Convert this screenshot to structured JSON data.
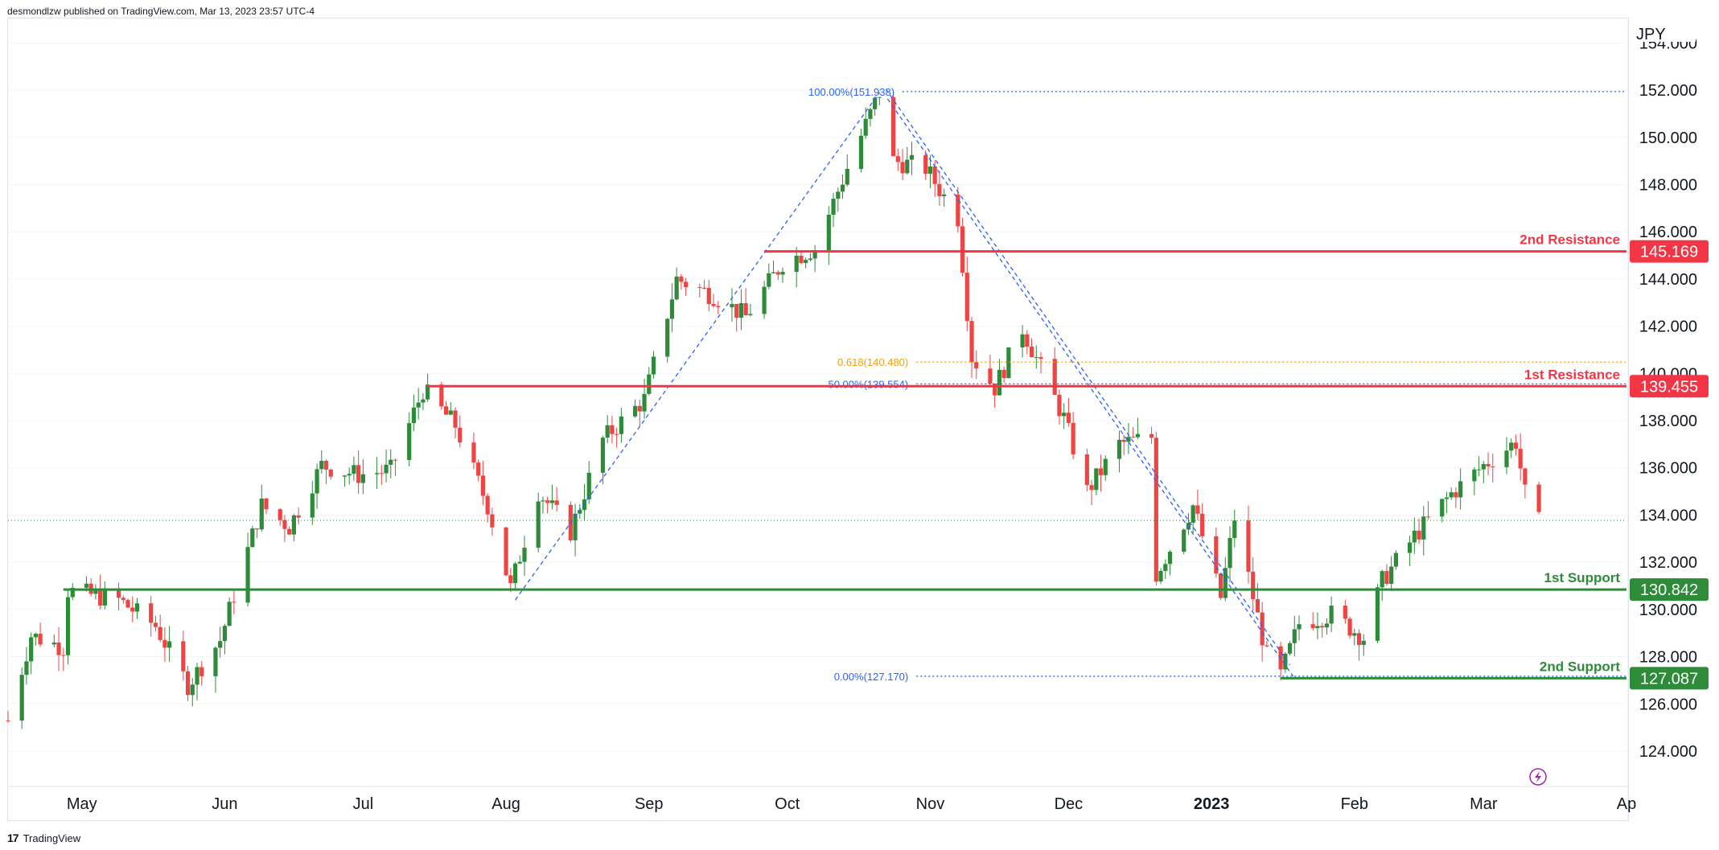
{
  "header": {
    "published": "desmondlzw published on TradingView.com, Mar 13, 2023 23:57 UTC-4"
  },
  "footer": {
    "brand": "TradingView",
    "logo_icon": "tradingview-logo-icon"
  },
  "colors": {
    "up": "#2e8b3a",
    "down": "#ef4444",
    "resistance": "#f23645",
    "support": "#2e8b3a",
    "fib": "#2962ff",
    "fib618": "#f59e0b",
    "grid": "#f0f3fa",
    "text": "#131722"
  },
  "chart_data": {
    "type": "candlestick",
    "symbol_currency": "JPY",
    "y_axis": {
      "range": [
        122.5,
        155
      ],
      "ticks": [
        "154.000",
        "152.000",
        "150.000",
        "148.000",
        "146.000",
        "144.000",
        "142.000",
        "140.000",
        "138.000",
        "136.000",
        "134.000",
        "132.000",
        "130.000",
        "128.000",
        "126.000",
        "124.000"
      ]
    },
    "x_axis": {
      "range": [
        "2022-04-15",
        "2023-04-01"
      ],
      "ticks": [
        {
          "label": "May",
          "date": "2022-05-01",
          "bold": false
        },
        {
          "label": "Jun",
          "date": "2022-06-01",
          "bold": false
        },
        {
          "label": "Jul",
          "date": "2022-07-01",
          "bold": false
        },
        {
          "label": "Aug",
          "date": "2022-08-01",
          "bold": false
        },
        {
          "label": "Sep",
          "date": "2022-09-01",
          "bold": false
        },
        {
          "label": "Oct",
          "date": "2022-10-01",
          "bold": false
        },
        {
          "label": "Nov",
          "date": "2022-11-01",
          "bold": false
        },
        {
          "label": "Dec",
          "date": "2022-12-01",
          "bold": false
        },
        {
          "label": "2023",
          "date": "2023-01-01",
          "bold": true
        },
        {
          "label": "Feb",
          "date": "2023-02-01",
          "bold": false
        },
        {
          "label": "Mar",
          "date": "2023-03-01",
          "bold": false
        },
        {
          "label": "Ap",
          "date": "2023-04-01",
          "bold": false
        }
      ]
    },
    "price_path": [
      [
        "2022-04-15",
        125.3
      ],
      [
        "2022-04-20",
        128.9
      ],
      [
        "2022-04-27",
        128.4
      ],
      [
        "2022-04-28",
        130.8
      ],
      [
        "2022-05-09",
        130.4
      ],
      [
        "2022-05-17",
        129.3
      ],
      [
        "2022-05-24",
        126.8
      ],
      [
        "2022-05-31",
        128.7
      ],
      [
        "2022-06-09",
        134.4
      ],
      [
        "2022-06-15",
        133.5
      ],
      [
        "2022-06-22",
        136.1
      ],
      [
        "2022-06-30",
        135.7
      ],
      [
        "2022-07-07",
        135.9
      ],
      [
        "2022-07-14",
        139.3
      ],
      [
        "2022-07-21",
        137.8
      ],
      [
        "2022-07-28",
        134.4
      ],
      [
        "2022-08-02",
        130.9
      ],
      [
        "2022-08-08",
        135.0
      ],
      [
        "2022-08-15",
        133.3
      ],
      [
        "2022-08-22",
        137.2
      ],
      [
        "2022-08-31",
        138.9
      ],
      [
        "2022-09-07",
        144.0
      ],
      [
        "2022-09-15",
        143.3
      ],
      [
        "2022-09-22",
        142.4
      ],
      [
        "2022-09-30",
        144.7
      ],
      [
        "2022-10-07",
        145.3
      ],
      [
        "2022-10-14",
        148.7
      ],
      [
        "2022-10-21",
        151.9
      ],
      [
        "2022-10-24",
        149.0
      ],
      [
        "2022-10-31",
        148.7
      ],
      [
        "2022-11-07",
        146.6
      ],
      [
        "2022-11-10",
        140.7
      ],
      [
        "2022-11-15",
        139.4
      ],
      [
        "2022-11-21",
        141.9
      ],
      [
        "2022-11-30",
        138.1
      ],
      [
        "2022-12-05",
        135.0
      ],
      [
        "2022-12-12",
        137.0
      ],
      [
        "2022-12-19",
        137.3
      ],
      [
        "2022-12-20",
        131.5
      ],
      [
        "2022-12-28",
        134.4
      ],
      [
        "2023-01-03",
        130.5
      ],
      [
        "2023-01-06",
        133.9
      ],
      [
        "2023-01-13",
        128.0
      ],
      [
        "2023-01-16",
        127.2
      ],
      [
        "2023-01-20",
        129.4
      ],
      [
        "2023-01-27",
        129.8
      ],
      [
        "2023-02-03",
        128.8
      ],
      [
        "2023-02-07",
        131.2
      ],
      [
        "2023-02-14",
        133.1
      ],
      [
        "2023-02-22",
        134.9
      ],
      [
        "2023-03-01",
        136.1
      ],
      [
        "2023-03-08",
        137.1
      ],
      [
        "2023-03-10",
        134.9
      ],
      [
        "2023-03-13",
        133.7
      ]
    ],
    "current_price": 133.77,
    "levels": [
      {
        "name": "2nd Resistance",
        "price": 145.169,
        "label": "145.169",
        "kind": "resistance",
        "start": "2022-09-26"
      },
      {
        "name": "1st Resistance",
        "price": 139.455,
        "label": "139.455",
        "kind": "resistance",
        "start": "2022-07-15"
      },
      {
        "name": "1st Support",
        "price": 130.842,
        "label": "130.842",
        "kind": "support",
        "start": "2022-04-27"
      },
      {
        "name": "2nd Support",
        "price": 127.087,
        "label": "127.087",
        "kind": "support",
        "start": "2023-01-16"
      }
    ],
    "fibonacci": {
      "levels": [
        {
          "label": "100.00%(151.938)",
          "price": 151.938,
          "start": "2022-10-26"
        },
        {
          "label": "0.618(140.480)",
          "price": 140.48,
          "start": "2022-10-29"
        },
        {
          "label": "50.00%(139.554)",
          "price": 139.554,
          "start": "2022-10-29"
        },
        {
          "label": "0.00%(127.170)",
          "price": 127.17,
          "start": "2022-10-29"
        }
      ],
      "trend_from": [
        "2022-08-03",
        130.4
      ],
      "trend_to": [
        "2022-10-21",
        151.9
      ],
      "trend_end": [
        "2023-01-18",
        127.17
      ]
    },
    "lightning_icon": "lightning-icon"
  }
}
